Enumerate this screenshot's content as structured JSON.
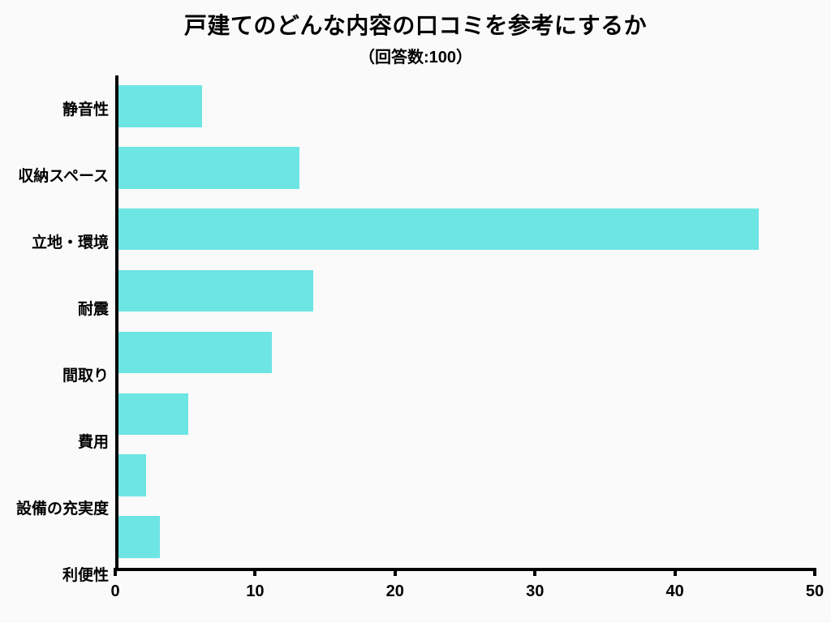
{
  "chart": {
    "type": "bar-horizontal",
    "title": "戸建てのどんな内容の口コミを参考にするか",
    "subtitle": "（回答数:100）",
    "title_fontsize": 28,
    "subtitle_fontsize": 20,
    "label_fontsize": 19,
    "tick_fontsize": 20,
    "background_color": "#fafafa",
    "bar_color": "#6ce5e3",
    "axis_color": "#000000",
    "text_color": "#000000",
    "xlim": [
      0,
      50
    ],
    "xtick_step": 10,
    "xticks": [
      0,
      10,
      20,
      30,
      40,
      50
    ],
    "categories": [
      "静音性",
      "収納スペース",
      "立地・環境",
      "耐震",
      "間取り",
      "費用",
      "設備の充実度",
      "利便性"
    ],
    "values": [
      6,
      13,
      46,
      14,
      11,
      5,
      2,
      3
    ],
    "bar_height_ratio": 0.68,
    "axis_line_width": 4
  }
}
